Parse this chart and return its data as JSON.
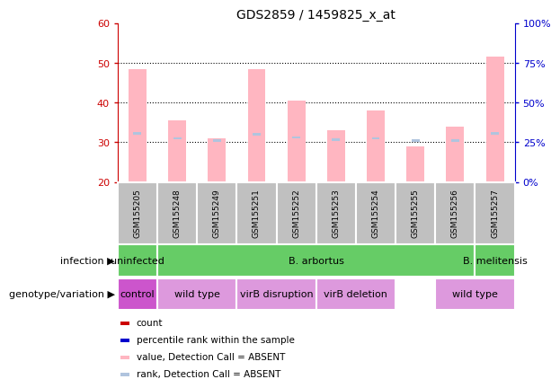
{
  "title": "GDS2859 / 1459825_x_at",
  "samples": [
    "GSM155205",
    "GSM155248",
    "GSM155249",
    "GSM155251",
    "GSM155252",
    "GSM155253",
    "GSM155254",
    "GSM155255",
    "GSM155256",
    "GSM155257"
  ],
  "values": [
    48.5,
    35.5,
    31.0,
    48.5,
    40.5,
    33.0,
    38.0,
    29.0,
    34.0,
    51.5
  ],
  "ranks_pct": [
    30.5,
    27.5,
    26.0,
    30.0,
    28.0,
    26.5,
    27.5,
    26.0,
    26.0,
    30.5
  ],
  "ylim_left": [
    20,
    60
  ],
  "ylim_right": [
    0,
    100
  ],
  "yticks_left": [
    20,
    30,
    40,
    50,
    60
  ],
  "yticks_right": [
    0,
    25,
    50,
    75,
    100
  ],
  "ytick_labels_right": [
    "0%",
    "25%",
    "50%",
    "75%",
    "100%"
  ],
  "bar_base": 20,
  "value_bar_color": "#ffb6c1",
  "rank_bar_color": "#b0c4de",
  "sample_bg_color": "#c0c0c0",
  "infection_groups": [
    {
      "start": 0,
      "end": 1,
      "label": "uninfected",
      "color": "#66cc66"
    },
    {
      "start": 1,
      "end": 9,
      "label": "B. arbortus",
      "color": "#66cc66"
    },
    {
      "start": 9,
      "end": 10,
      "label": "B. melitensis",
      "color": "#66cc66"
    }
  ],
  "genotype_groups": [
    {
      "start": 0,
      "end": 1,
      "label": "control",
      "color": "#cc55cc"
    },
    {
      "start": 1,
      "end": 3,
      "label": "wild type",
      "color": "#dd99dd"
    },
    {
      "start": 3,
      "end": 5,
      "label": "virB disruption",
      "color": "#dd99dd"
    },
    {
      "start": 5,
      "end": 7,
      "label": "virB deletion",
      "color": "#dd99dd"
    },
    {
      "start": 8,
      "end": 10,
      "label": "wild type",
      "color": "#dd99dd"
    }
  ],
  "legend_items": [
    {
      "color": "#cc0000",
      "label": "count"
    },
    {
      "color": "#0000cc",
      "label": "percentile rank within the sample"
    },
    {
      "color": "#ffb6c1",
      "label": "value, Detection Call = ABSENT"
    },
    {
      "color": "#b0c4de",
      "label": "rank, Detection Call = ABSENT"
    }
  ],
  "left_axis_color": "#cc0000",
  "right_axis_color": "#0000cc",
  "grid_yticks": [
    30,
    40,
    50
  ],
  "bar_width": 0.45,
  "rank_bar_width": 0.2,
  "rank_bar_height": 0.6
}
